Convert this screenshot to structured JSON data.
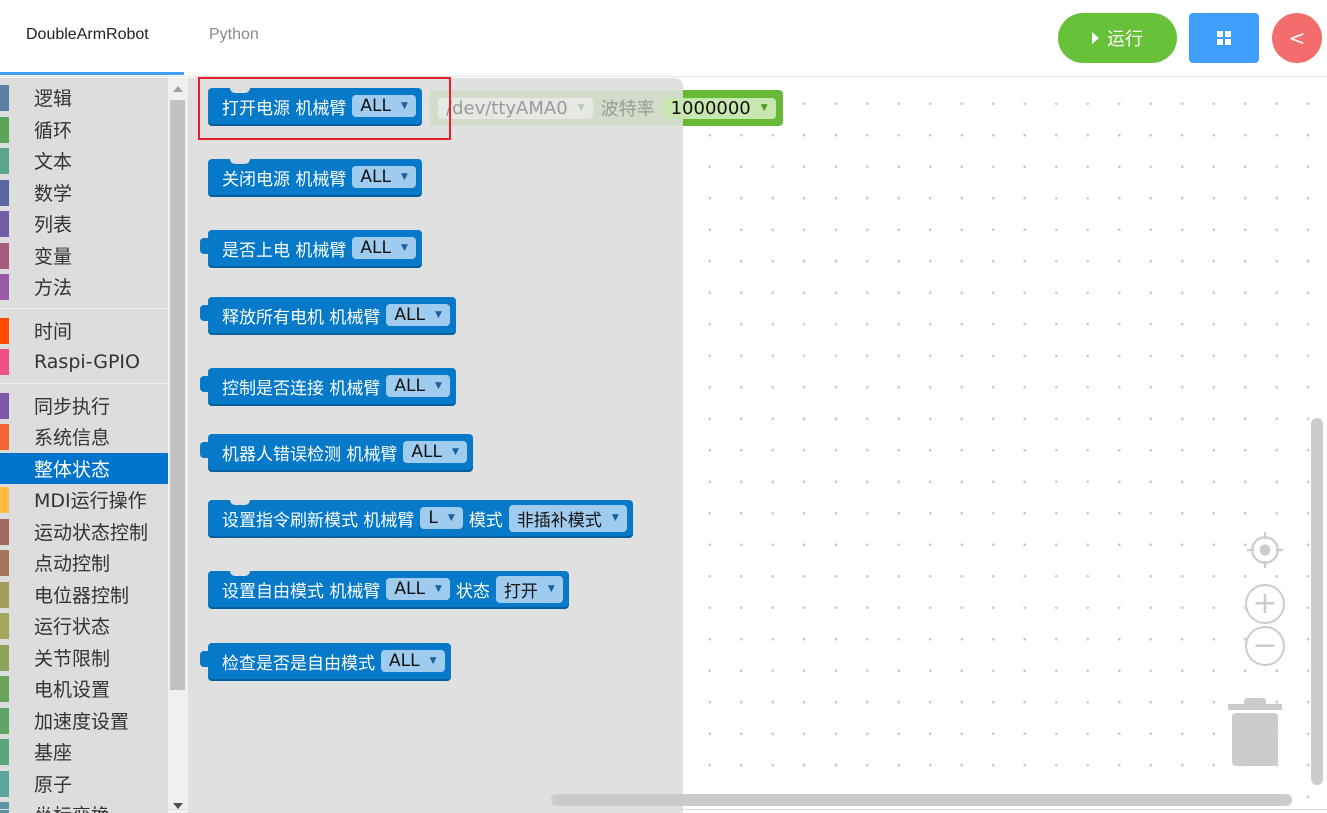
{
  "header": {
    "tabs": [
      {
        "label": "DoubleArmRobot",
        "active": true
      },
      {
        "label": "Python",
        "active": false
      }
    ],
    "run_button": {
      "label": "运行",
      "icon": "play-icon",
      "color": "#67c23a"
    },
    "grid_button": {
      "icon": "grid-icon",
      "color": "#409eff"
    },
    "back_button": {
      "icon": "chevron-left-icon",
      "label": "<",
      "color": "#f56c6c"
    }
  },
  "sidebar": {
    "groups": [
      [
        {
          "label": "逻辑",
          "color": "#5b80a5"
        },
        {
          "label": "循环",
          "color": "#5ba55b"
        },
        {
          "label": "文本",
          "color": "#5ba58c"
        },
        {
          "label": "数学",
          "color": "#5b67a5"
        },
        {
          "label": "列表",
          "color": "#745ba5"
        },
        {
          "label": "变量",
          "color": "#a55b80"
        },
        {
          "label": "方法",
          "color": "#995ba5"
        }
      ],
      [
        {
          "label": "时间",
          "color": "#ff4a00"
        },
        {
          "label": "Raspi-GPIO",
          "color": "#f0508a"
        }
      ],
      [
        {
          "label": "同步执行",
          "color": "#7e57a8"
        },
        {
          "label": "系统信息",
          "color": "#f26430"
        },
        {
          "label": "整体状态",
          "color": "#0074cc",
          "selected": true
        },
        {
          "label": "MDI运行操作",
          "color": "#ffbb44"
        },
        {
          "label": "运动状态控制",
          "color": "#a5675b"
        },
        {
          "label": "点动控制",
          "color": "#a5745b"
        },
        {
          "label": "电位器控制",
          "color": "#a59b5b"
        },
        {
          "label": "运行状态",
          "color": "#a5a55b"
        },
        {
          "label": "关节限制",
          "color": "#8ca55b"
        },
        {
          "label": "电机设置",
          "color": "#68a55b"
        },
        {
          "label": "加速度设置",
          "color": "#5ba565"
        },
        {
          "label": "基座",
          "color": "#5ba57c"
        },
        {
          "label": "原子",
          "color": "#5ba5a0"
        },
        {
          "label": "坐标变换",
          "color": "#5b95a5"
        }
      ]
    ]
  },
  "flyout": {
    "blocks": [
      {
        "text": "打开电源 机械臂",
        "dd1": "ALL"
      },
      {
        "text": "关闭电源 机械臂",
        "dd1": "ALL"
      },
      {
        "text": "是否上电 机械臂",
        "dd1": "ALL"
      },
      {
        "text": "释放所有电机 机械臂",
        "dd1": "ALL"
      },
      {
        "text": "控制是否连接 机械臂",
        "dd1": "ALL"
      },
      {
        "text": "机器人错误检测 机械臂",
        "dd1": "ALL"
      },
      {
        "text": "设置指令刷新模式 机械臂",
        "dd1": "L",
        "text2": "模式",
        "dd2": "非插补模式"
      },
      {
        "text": "设置自由模式 机械臂",
        "dd1": "ALL",
        "text2": "状态",
        "dd2": "打开"
      },
      {
        "text": "检查是否是自由模式",
        "dd1": "ALL"
      }
    ]
  },
  "workspace_block": {
    "port": "/dev/ttyAMA0",
    "baud_label": "波特率",
    "baud": "1000000",
    "color": "#67b836"
  },
  "controls": {
    "recenter_icon": "target-icon",
    "zoom_in_icon": "plus-icon",
    "zoom_out_icon": "minus-icon",
    "trash_icon": "trash-icon"
  }
}
